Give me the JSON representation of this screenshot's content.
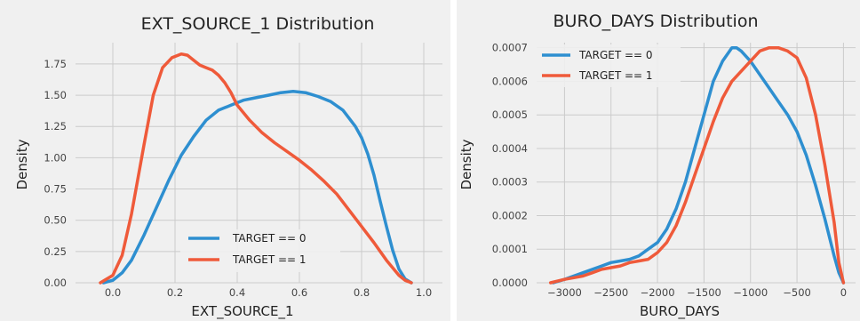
{
  "colors": {
    "background": "#f0f0f0",
    "grid": "#cbcbcb",
    "series0": "#2e8fd0",
    "series1": "#ef5a3a"
  },
  "chart_data": [
    {
      "type": "line",
      "title": "EXT_SOURCE_1 Distribution",
      "xlabel": "EXT_SOURCE_1",
      "ylabel": "Density",
      "xlim": [
        -0.12,
        1.06
      ],
      "ylim": [
        0,
        1.92
      ],
      "xticks": [
        0.0,
        0.2,
        0.4,
        0.6,
        0.8,
        1.0
      ],
      "xtick_labels": [
        "0.0",
        "0.2",
        "0.4",
        "0.6",
        "0.8",
        "1.0"
      ],
      "yticks": [
        0,
        0.25,
        0.5,
        0.75,
        1.0,
        1.25,
        1.5,
        1.75
      ],
      "ytick_labels": [
        "0.00",
        "0.25",
        "0.50",
        "0.75",
        "1.00",
        "1.25",
        "1.50",
        "1.75"
      ],
      "grid": true,
      "legend": "lower-right",
      "series": [
        {
          "name": "TARGET == 0",
          "color": "#2e8fd0",
          "x": [
            -0.03,
            0.0,
            0.03,
            0.06,
            0.1,
            0.14,
            0.18,
            0.22,
            0.26,
            0.3,
            0.34,
            0.38,
            0.42,
            0.46,
            0.5,
            0.54,
            0.58,
            0.62,
            0.66,
            0.7,
            0.74,
            0.78,
            0.8,
            0.82,
            0.84,
            0.86,
            0.88,
            0.9,
            0.92,
            0.94,
            0.96
          ],
          "y": [
            0.0,
            0.02,
            0.08,
            0.18,
            0.38,
            0.6,
            0.82,
            1.02,
            1.17,
            1.3,
            1.38,
            1.42,
            1.46,
            1.48,
            1.5,
            1.52,
            1.53,
            1.52,
            1.49,
            1.45,
            1.38,
            1.25,
            1.16,
            1.03,
            0.86,
            0.65,
            0.45,
            0.26,
            0.11,
            0.03,
            0.0
          ]
        },
        {
          "name": "TARGET == 1",
          "color": "#ef5a3a",
          "x": [
            -0.04,
            0.0,
            0.03,
            0.06,
            0.1,
            0.13,
            0.16,
            0.19,
            0.22,
            0.24,
            0.26,
            0.28,
            0.3,
            0.32,
            0.34,
            0.36,
            0.38,
            0.4,
            0.44,
            0.48,
            0.52,
            0.56,
            0.6,
            0.64,
            0.68,
            0.72,
            0.76,
            0.8,
            0.84,
            0.88,
            0.92,
            0.94,
            0.96
          ],
          "y": [
            0.0,
            0.06,
            0.22,
            0.55,
            1.1,
            1.5,
            1.72,
            1.8,
            1.83,
            1.82,
            1.78,
            1.74,
            1.72,
            1.7,
            1.66,
            1.6,
            1.52,
            1.42,
            1.3,
            1.2,
            1.12,
            1.05,
            0.98,
            0.9,
            0.81,
            0.71,
            0.58,
            0.45,
            0.32,
            0.18,
            0.06,
            0.02,
            0.0
          ]
        }
      ]
    },
    {
      "type": "line",
      "title": "BURO_DAYS  Distribution",
      "xlabel": "BURO_DAYS",
      "ylabel": "Density",
      "xlim": [
        -3300,
        130
      ],
      "ylim": [
        0,
        0.000715
      ],
      "xticks": [
        -3000,
        -2500,
        -2000,
        -1500,
        -1000,
        -500,
        0
      ],
      "xtick_labels": [
        "−3000",
        "−2500",
        "−2000",
        "−1500",
        "−1000",
        "−500",
        "0"
      ],
      "yticks": [
        0,
        0.0001,
        0.0002,
        0.0003,
        0.0004,
        0.0005,
        0.0006,
        0.0007
      ],
      "ytick_labels": [
        "0.0000",
        "0.0001",
        "0.0002",
        "0.0003",
        "0.0004",
        "0.0005",
        "0.0006",
        "0.0007"
      ],
      "grid": true,
      "legend": "upper-left",
      "series": [
        {
          "name": "TARGET == 0",
          "color": "#2e8fd0",
          "x": [
            -3120,
            -3000,
            -2900,
            -2800,
            -2700,
            -2600,
            -2500,
            -2400,
            -2300,
            -2200,
            -2100,
            -2000,
            -1900,
            -1800,
            -1700,
            -1600,
            -1500,
            -1400,
            -1300,
            -1200,
            -1150,
            -1100,
            -1000,
            -900,
            -800,
            -700,
            -600,
            -500,
            -400,
            -300,
            -200,
            -100,
            -50,
            0
          ],
          "y": [
            0.0,
            1e-05,
            2e-05,
            3e-05,
            4e-05,
            5e-05,
            6e-05,
            6.5e-05,
            7e-05,
            8e-05,
            0.0001,
            0.00012,
            0.00016,
            0.00022,
            0.0003,
            0.0004,
            0.0005,
            0.0006,
            0.00066,
            0.0007,
            0.0007,
            0.00069,
            0.00066,
            0.00062,
            0.00058,
            0.00054,
            0.0005,
            0.00045,
            0.00038,
            0.00029,
            0.00019,
            8e-05,
            3e-05,
            0.0
          ]
        },
        {
          "name": "TARGET == 1",
          "color": "#ef5a3a",
          "x": [
            -3150,
            -3000,
            -2900,
            -2800,
            -2700,
            -2600,
            -2500,
            -2400,
            -2300,
            -2200,
            -2100,
            -2000,
            -1900,
            -1800,
            -1700,
            -1600,
            -1500,
            -1400,
            -1300,
            -1200,
            -1100,
            -1000,
            -900,
            -800,
            -700,
            -600,
            -500,
            -400,
            -300,
            -200,
            -100,
            -50,
            0
          ],
          "y": [
            0.0,
            1e-05,
            1.5e-05,
            2e-05,
            3e-05,
            4e-05,
            4.5e-05,
            5e-05,
            6e-05,
            6.5e-05,
            7e-05,
            9e-05,
            0.00012,
            0.00017,
            0.00024,
            0.00032,
            0.0004,
            0.00048,
            0.00055,
            0.0006,
            0.00063,
            0.00066,
            0.00069,
            0.0007,
            0.0007,
            0.00069,
            0.00067,
            0.00061,
            0.0005,
            0.00035,
            0.00018,
            6e-05,
            0.0
          ]
        }
      ]
    }
  ]
}
